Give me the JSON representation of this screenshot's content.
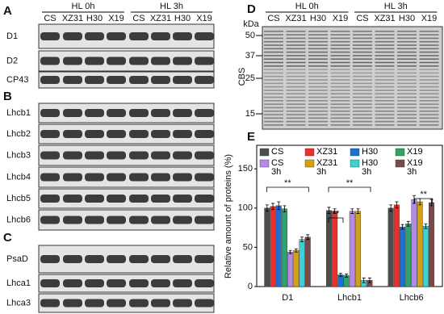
{
  "blots": {
    "header": [
      "HL 0h",
      "HL 3h"
    ],
    "lanes": [
      "CS",
      "XZ31",
      "H30",
      "X19",
      "CS",
      "XZ31",
      "H30",
      "X19"
    ],
    "panels": [
      {
        "label": "A",
        "rows": [
          "D1",
          "D2",
          "CP43"
        ]
      },
      {
        "label": "B",
        "rows": [
          "Lhcb1",
          "Lhcb2",
          "Lhcb3",
          "Lhcb4",
          "Lhcb5",
          "Lhcb6"
        ]
      },
      {
        "label": "C",
        "rows": [
          "PsaD",
          "Lhca1",
          "Lhca3"
        ]
      }
    ]
  },
  "gel": {
    "label": "D",
    "header": [
      "HL 0h",
      "HL 3h"
    ],
    "lanes": [
      "CS",
      "XZ31",
      "H30",
      "X19",
      "CS",
      "XZ31",
      "H30",
      "X19"
    ],
    "unit": "kDa",
    "markers": [
      "50",
      "37",
      "25",
      "15"
    ],
    "ylabel": "CBS"
  },
  "chart_data": {
    "type": "bar",
    "label": "E",
    "ylabel": "Relative amount of proteins (%)",
    "categories": [
      "D1",
      "Lhcb1",
      "Lhcb6"
    ],
    "series": [
      {
        "name": "CS",
        "color": "#4d4d4d",
        "values": [
          100,
          97,
          100
        ],
        "errors": [
          4,
          4,
          4
        ]
      },
      {
        "name": "XZ31",
        "color": "#e8312f",
        "values": [
          102,
          96,
          104
        ],
        "errors": [
          4,
          3,
          4
        ]
      },
      {
        "name": "H30",
        "color": "#1f6fd1",
        "values": [
          103,
          15,
          76
        ],
        "errors": [
          5,
          2,
          3
        ]
      },
      {
        "name": "X19",
        "color": "#2ea36b",
        "values": [
          99,
          14,
          80
        ],
        "errors": [
          4,
          2,
          3
        ]
      },
      {
        "name": "CS 3h",
        "color": "#b58ae6",
        "values": [
          44,
          96,
          111
        ],
        "errors": [
          2,
          3,
          5
        ]
      },
      {
        "name": "XZ31 3h",
        "color": "#d4a017",
        "values": [
          46,
          96,
          108
        ],
        "errors": [
          2,
          3,
          4
        ]
      },
      {
        "name": "H30 3h",
        "color": "#3fd0d0",
        "values": [
          60,
          8,
          77
        ],
        "errors": [
          3,
          3,
          3
        ]
      },
      {
        "name": "X19 3h",
        "color": "#7a4a4a",
        "values": [
          63,
          8,
          107
        ],
        "errors": [
          3,
          3,
          4
        ]
      }
    ],
    "ylim": [
      0,
      180
    ],
    "yticks": [
      0,
      50,
      100,
      150
    ],
    "annotations": [
      "**",
      "**",
      "**",
      "**"
    ]
  }
}
